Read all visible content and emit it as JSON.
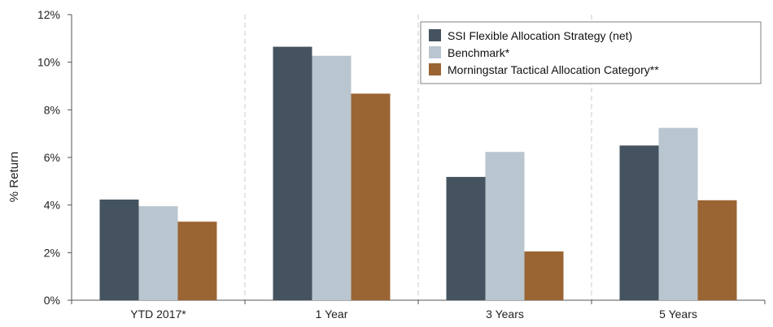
{
  "chart_data": {
    "type": "bar",
    "title": "",
    "xlabel": "",
    "ylabel": "% Return",
    "ylim": [
      0,
      12
    ],
    "yticks": [
      "0%",
      "2%",
      "4%",
      "6%",
      "8%",
      "10%",
      "12%"
    ],
    "ytick_values": [
      0,
      2,
      4,
      6,
      8,
      10,
      12
    ],
    "categories": [
      "YTD 2017*",
      "1 Year",
      "3 Years",
      "5 Years"
    ],
    "series": [
      {
        "name": "SSI Flexible Allocation Strategy (net)",
        "color": "#44535f",
        "values": [
          4.23,
          10.65,
          5.18,
          6.5
        ]
      },
      {
        "name": "Benchmark*",
        "color": "#b9c6cf",
        "values": [
          3.95,
          10.27,
          6.23,
          7.24
        ]
      },
      {
        "name": "Morningstar Tactical Allocation Category**",
        "color": "#9b6433",
        "values": [
          3.3,
          8.68,
          2.05,
          4.2
        ]
      }
    ],
    "legend_position": "top-right",
    "grid": "vertical-dashed-between-categories"
  }
}
